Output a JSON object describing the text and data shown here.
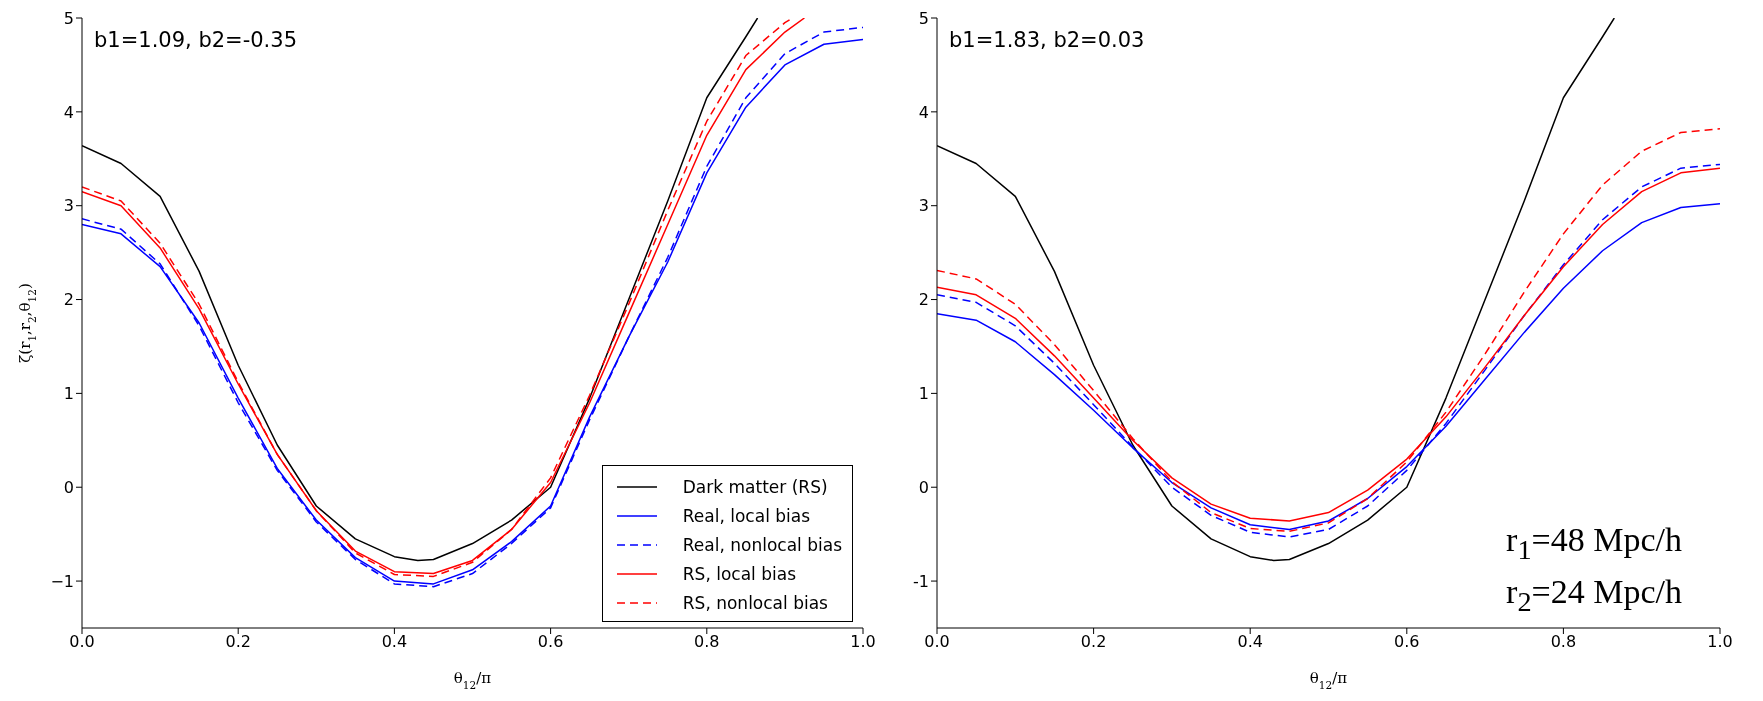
{
  "chart_data": [
    {
      "type": "line",
      "xlabel": "θ$_{12}$/π",
      "ylabel": "ζ(r$_{1}$,r$_{2}$,θ$_{12}$)",
      "x": [
        0,
        0.05,
        0.1,
        0.15,
        0.2,
        0.25,
        0.3,
        0.35,
        0.4,
        0.45,
        0.5,
        0.55,
        0.6,
        0.65,
        0.7,
        0.75,
        0.8,
        0.85,
        0.9,
        0.95,
        1.0
      ],
      "series": [
        {
          "name": "Dark matter (RS)",
          "color": "#000000",
          "line_style": "solid",
          "x": [
            0,
            0.05,
            0.1,
            0.15,
            0.2,
            0.25,
            0.3,
            0.35,
            0.4,
            0.43,
            0.45,
            0.5,
            0.55,
            0.6,
            0.65,
            0.7,
            0.75,
            0.8,
            0.85,
            0.865
          ],
          "values": [
            3.64,
            3.45,
            3.1,
            2.3,
            1.3,
            0.45,
            -0.2,
            -0.55,
            -0.74,
            -0.78,
            -0.77,
            -0.6,
            -0.35,
            0.0,
            0.95,
            2.0,
            3.05,
            4.15,
            4.8,
            5.0
          ]
        },
        {
          "name": "Real, local bias",
          "color": "#0000ff",
          "line_style": "solid",
          "values": [
            2.8,
            2.7,
            2.35,
            1.75,
            0.95,
            0.2,
            -0.35,
            -0.75,
            -1.0,
            -1.03,
            -0.88,
            -0.58,
            -0.2,
            0.75,
            1.6,
            2.4,
            3.35,
            4.05,
            4.5,
            4.72,
            4.77
          ]
        },
        {
          "name": "Real, nonlocal bias",
          "color": "#0000ff",
          "line_style": "dashed",
          "values": [
            2.86,
            2.75,
            2.38,
            1.72,
            0.9,
            0.18,
            -0.37,
            -0.77,
            -1.03,
            -1.06,
            -0.92,
            -0.6,
            -0.22,
            0.72,
            1.6,
            2.45,
            3.42,
            4.15,
            4.62,
            4.85,
            4.9
          ]
        },
        {
          "name": "RS, local bias",
          "color": "#ff0000",
          "line_style": "solid",
          "x": [
            0,
            0.05,
            0.1,
            0.15,
            0.2,
            0.25,
            0.3,
            0.35,
            0.4,
            0.45,
            0.5,
            0.55,
            0.6,
            0.65,
            0.7,
            0.75,
            0.8,
            0.85,
            0.9,
            0.925
          ],
          "values": [
            3.15,
            3.0,
            2.55,
            1.9,
            1.1,
            0.35,
            -0.25,
            -0.68,
            -0.9,
            -0.92,
            -0.78,
            -0.45,
            0.05,
            0.9,
            1.85,
            2.8,
            3.75,
            4.45,
            4.85,
            5.0
          ]
        },
        {
          "name": "RS, nonlocal bias",
          "color": "#ff0000",
          "line_style": "dashed",
          "x": [
            0,
            0.05,
            0.1,
            0.15,
            0.2,
            0.25,
            0.3,
            0.35,
            0.4,
            0.45,
            0.5,
            0.55,
            0.6,
            0.65,
            0.7,
            0.75,
            0.8,
            0.85,
            0.9,
            0.91
          ],
          "values": [
            3.2,
            3.05,
            2.6,
            1.95,
            1.12,
            0.35,
            -0.25,
            -0.7,
            -0.93,
            -0.95,
            -0.8,
            -0.45,
            0.1,
            0.98,
            1.95,
            2.95,
            3.9,
            4.6,
            4.95,
            5.0
          ]
        }
      ],
      "xlim": [
        0,
        1
      ],
      "xticks": [
        {
          "value": 0,
          "label": "0.0"
        },
        {
          "value": 0.2,
          "label": "0.2"
        },
        {
          "value": 0.4,
          "label": "0.4"
        },
        {
          "value": 0.6,
          "label": "0.6"
        },
        {
          "value": 0.8,
          "label": "0.8"
        },
        {
          "value": 1,
          "label": "1.0"
        }
      ],
      "ylim": [
        -1.5,
        5
      ],
      "yticks": [
        {
          "value": -1,
          "label": "−1"
        },
        0,
        1,
        2,
        3,
        4,
        5
      ],
      "annotations": [
        "b1=1.09, b2=-0.35"
      ],
      "legend": "bottom right",
      "grid": false
    },
    {
      "type": "line",
      "xlabel": "θ$_{12}$/π",
      "x": [
        0,
        0.05,
        0.1,
        0.15,
        0.2,
        0.25,
        0.3,
        0.35,
        0.4,
        0.45,
        0.5,
        0.55,
        0.6,
        0.65,
        0.7,
        0.75,
        0.8,
        0.85,
        0.9,
        0.95,
        1.0
      ],
      "series": [
        {
          "color": "#000000",
          "line_style": "solid",
          "x": [
            0,
            0.05,
            0.1,
            0.15,
            0.2,
            0.25,
            0.3,
            0.35,
            0.4,
            0.43,
            0.45,
            0.5,
            0.55,
            0.6,
            0.65,
            0.7,
            0.75,
            0.8,
            0.85,
            0.865
          ],
          "values": [
            3.64,
            3.45,
            3.1,
            2.3,
            1.3,
            0.45,
            -0.2,
            -0.55,
            -0.74,
            -0.78,
            -0.77,
            -0.6,
            -0.35,
            0.0,
            0.95,
            2.0,
            3.05,
            4.15,
            4.8,
            5.0
          ]
        },
        {
          "color": "#0000ff",
          "line_style": "solid",
          "values": [
            1.85,
            1.78,
            1.55,
            1.2,
            0.82,
            0.42,
            0.05,
            -0.22,
            -0.4,
            -0.45,
            -0.36,
            -0.12,
            0.22,
            0.65,
            1.15,
            1.65,
            2.12,
            2.52,
            2.82,
            2.98,
            3.02
          ]
        },
        {
          "color": "#0000ff",
          "line_style": "dashed",
          "values": [
            2.05,
            1.97,
            1.72,
            1.32,
            0.88,
            0.43,
            0.0,
            -0.3,
            -0.48,
            -0.53,
            -0.45,
            -0.2,
            0.18,
            0.68,
            1.25,
            1.83,
            2.37,
            2.85,
            3.2,
            3.4,
            3.44
          ]
        },
        {
          "color": "#ff0000",
          "line_style": "solid",
          "values": [
            2.13,
            2.05,
            1.8,
            1.4,
            0.95,
            0.5,
            0.1,
            -0.18,
            -0.33,
            -0.36,
            -0.27,
            -0.03,
            0.3,
            0.75,
            1.28,
            1.83,
            2.35,
            2.8,
            3.15,
            3.35,
            3.4
          ]
        },
        {
          "color": "#ff0000",
          "line_style": "dashed",
          "values": [
            2.31,
            2.22,
            1.95,
            1.52,
            1.03,
            0.52,
            0.06,
            -0.27,
            -0.44,
            -0.47,
            -0.38,
            -0.12,
            0.27,
            0.8,
            1.42,
            2.08,
            2.7,
            3.22,
            3.58,
            3.78,
            3.82
          ]
        }
      ],
      "xlim": [
        0,
        1
      ],
      "xticks": [
        {
          "value": 0,
          "label": "0.0"
        },
        {
          "value": 0.2,
          "label": "0.2"
        },
        {
          "value": 0.4,
          "label": "0.4"
        },
        {
          "value": 0.6,
          "label": "0.6"
        },
        {
          "value": 0.8,
          "label": "0.8"
        },
        {
          "value": 1,
          "label": "1.0"
        }
      ],
      "ylim": [
        -1.5,
        5
      ],
      "yticks": [
        -1,
        0,
        1,
        2,
        3,
        4,
        5
      ],
      "annotations": [
        "b1=1.83, b2=0.03",
        "r$_{1}$=48 Mpc/h",
        "r$_{2}$=24 Mpc/h"
      ],
      "grid": false
    }
  ]
}
